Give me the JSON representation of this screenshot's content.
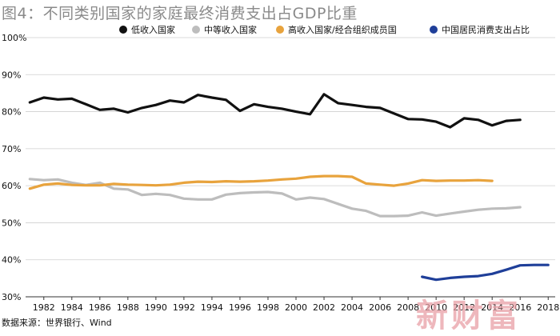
{
  "title": "图4：不同类别国家的家庭最终消费支出占GDP比重",
  "source": "数据来源：世界银行、Wind",
  "watermark": "新财富",
  "chart_data": {
    "type": "line",
    "title": "图4：不同类别国家的家庭最终消费支出占GDP比重",
    "xlabel": "",
    "ylabel": "",
    "ylim": [
      30,
      100
    ],
    "xlim": [
      1980.7,
      2018.5
    ],
    "y_ticks": [
      30,
      40,
      50,
      60,
      70,
      80,
      90,
      100
    ],
    "y_tick_labels": [
      "30%",
      "40%",
      "50%",
      "60%",
      "70%",
      "80%",
      "90%",
      "100%"
    ],
    "x_ticks": [
      1982,
      1984,
      1986,
      1988,
      1990,
      1992,
      1994,
      1996,
      1998,
      2000,
      2002,
      2004,
      2006,
      2008,
      2010,
      2012,
      2014,
      2016,
      2018
    ],
    "grid": "horizontal",
    "legend_position": "top",
    "series": [
      {
        "name": "低收入国家",
        "color": "#111111",
        "x": [
          1981,
          1982,
          1983,
          1984,
          1985,
          1986,
          1987,
          1988,
          1989,
          1990,
          1991,
          1992,
          1993,
          1994,
          1995,
          1996,
          1997,
          1998,
          1999,
          2000,
          2001,
          2002,
          2003,
          2004,
          2005,
          2006,
          2007,
          2008,
          2009,
          2010,
          2011,
          2012,
          2013,
          2014,
          2015,
          2016
        ],
        "values": [
          82.5,
          83.8,
          83.3,
          83.5,
          82.0,
          80.5,
          80.8,
          79.8,
          81.0,
          81.8,
          83.0,
          82.5,
          84.5,
          83.8,
          83.2,
          80.2,
          82.0,
          81.3,
          80.8,
          80.0,
          79.3,
          84.7,
          82.3,
          81.8,
          81.3,
          81.0,
          79.5,
          78.0,
          77.9,
          77.3,
          75.8,
          78.2,
          77.8,
          76.3,
          77.5,
          77.8
        ]
      },
      {
        "name": "中等收入国家",
        "color": "#bdbdbd",
        "x": [
          1981,
          1982,
          1983,
          1984,
          1985,
          1986,
          1987,
          1988,
          1989,
          1990,
          1991,
          1992,
          1993,
          1994,
          1995,
          1996,
          1997,
          1998,
          1999,
          2000,
          2001,
          2002,
          2003,
          2004,
          2005,
          2006,
          2007,
          2008,
          2009,
          2010,
          2011,
          2012,
          2013,
          2014,
          2015,
          2016
        ],
        "values": [
          61.8,
          61.5,
          61.7,
          60.8,
          60.2,
          60.8,
          59.2,
          59.0,
          57.5,
          57.8,
          57.5,
          56.5,
          56.3,
          56.3,
          57.6,
          58.0,
          58.2,
          58.3,
          57.9,
          56.3,
          56.8,
          56.4,
          55.1,
          53.8,
          53.2,
          51.8,
          51.8,
          51.9,
          52.8,
          51.9,
          52.5,
          53.0,
          53.5,
          53.8,
          53.9,
          54.2
        ]
      },
      {
        "name": "高收入国家/经合组织成员国",
        "color": "#e8a33d",
        "x": [
          1981,
          1982,
          1983,
          1984,
          1985,
          1986,
          1987,
          1988,
          1989,
          1990,
          1991,
          1992,
          1993,
          1994,
          1995,
          1996,
          1997,
          1998,
          1999,
          2000,
          2001,
          2002,
          2003,
          2004,
          2005,
          2006,
          2007,
          2008,
          2009,
          2010,
          2011,
          2012,
          2013,
          2014
        ],
        "values": [
          59.2,
          60.3,
          60.6,
          60.2,
          60.1,
          60.1,
          60.5,
          60.3,
          60.2,
          60.1,
          60.3,
          60.8,
          61.1,
          61.0,
          61.2,
          61.1,
          61.2,
          61.4,
          61.7,
          61.9,
          62.4,
          62.6,
          62.6,
          62.4,
          60.6,
          60.3,
          60.0,
          60.6,
          61.5,
          61.3,
          61.4,
          61.4,
          61.5,
          61.3
        ]
      },
      {
        "name": "中国居民消费支出占比",
        "color": "#1f3f99",
        "x": [
          2009,
          2010,
          2011,
          2012,
          2013,
          2014,
          2015,
          2016,
          2017,
          2018
        ],
        "values": [
          35.4,
          34.6,
          35.1,
          35.4,
          35.6,
          36.2,
          37.3,
          38.5,
          38.6,
          38.6
        ]
      }
    ]
  }
}
